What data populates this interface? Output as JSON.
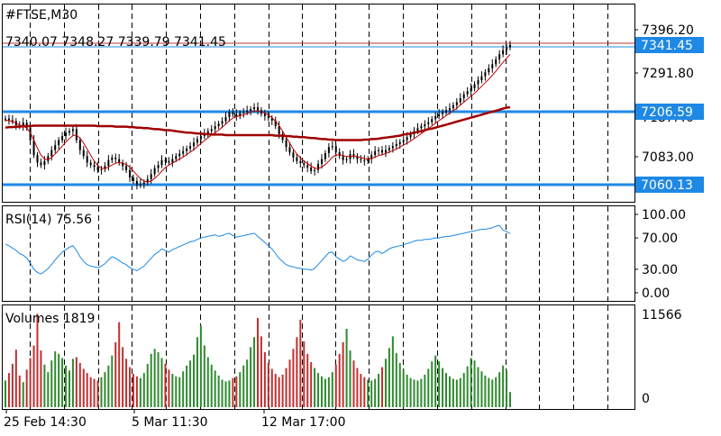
{
  "colors": {
    "background": "#ffffff",
    "grid": "#000000",
    "candle": "#000000",
    "ma_fast": "#c00000",
    "ma_slow": "#a00000",
    "level_line": "#1e88e5",
    "level_label_bg": "#1e88e5",
    "level_label_text": "#ffffff",
    "bid_line": "#c0303a",
    "ask_line": "#1e88e5",
    "rsi_line": "#1e88e5",
    "vol_up": "#2e8b2e",
    "vol_down": "#c03030"
  },
  "header": {
    "symbol": "#FTSE,M30",
    "ohlc": "7340.07 7348.27 7339.79 7341.45"
  },
  "rsi_label": "RSI(14) 75.56",
  "volume_label": "Volumes 1819",
  "chart_data": [
    {
      "type": "candlestick",
      "title": "#FTSE,M30",
      "ylim": [
        7030,
        7420
      ],
      "y_ticks": [
        "7396.20",
        "7291.80",
        "7187.40",
        "7083.00"
      ],
      "horizontal_levels": [
        {
          "value": 7206.59,
          "label": "7206.59"
        },
        {
          "value": 7060.13,
          "label": "7060.13"
        }
      ],
      "current_price": {
        "value": 7341.45,
        "label": "7341.45"
      },
      "close": [
        7193,
        7190,
        7188,
        7180,
        7178,
        7185,
        7175,
        7150,
        7120,
        7105,
        7100,
        7108,
        7118,
        7130,
        7140,
        7150,
        7158,
        7165,
        7168,
        7172,
        7150,
        7130,
        7118,
        7105,
        7100,
        7096,
        7090,
        7092,
        7098,
        7110,
        7115,
        7112,
        7105,
        7098,
        7090,
        7075,
        7068,
        7060,
        7062,
        7065,
        7072,
        7082,
        7094,
        7100,
        7110,
        7108,
        7105,
        7112,
        7118,
        7123,
        7128,
        7133,
        7138,
        7145,
        7152,
        7158,
        7163,
        7168,
        7172,
        7178,
        7183,
        7188,
        7196,
        7206,
        7202,
        7198,
        7204,
        7206,
        7209,
        7212,
        7216,
        7210,
        7203,
        7198,
        7194,
        7189,
        7178,
        7162,
        7150,
        7136,
        7125,
        7115,
        7108,
        7104,
        7100,
        7095,
        7088,
        7090,
        7102,
        7112,
        7124,
        7136,
        7138,
        7126,
        7118,
        7110,
        7112,
        7122,
        7118,
        7112,
        7110,
        7108,
        7112,
        7120,
        7128,
        7130,
        7125,
        7130,
        7134,
        7138,
        7142,
        7146,
        7150,
        7156,
        7162,
        7168,
        7174,
        7178,
        7182,
        7186,
        7192,
        7198,
        7202,
        7206,
        7210,
        7214,
        7220,
        7226,
        7234,
        7242,
        7248,
        7254,
        7262,
        7270,
        7278,
        7286,
        7294,
        7302,
        7312,
        7322,
        7330,
        7336,
        7341
      ],
      "ma_fast": [
        7190,
        7189,
        7187,
        7184,
        7180,
        7178,
        7174,
        7165,
        7150,
        7134,
        7120,
        7112,
        7111,
        7115,
        7122,
        7130,
        7138,
        7146,
        7153,
        7159,
        7160,
        7154,
        7144,
        7132,
        7120,
        7108,
        7099,
        7094,
        7093,
        7096,
        7100,
        7104,
        7105,
        7104,
        7101,
        7096,
        7088,
        7080,
        7073,
        7068,
        7066,
        7068,
        7073,
        7080,
        7088,
        7095,
        7100,
        7104,
        7108,
        7112,
        7116,
        7121,
        7126,
        7131,
        7137,
        7143,
        7149,
        7155,
        7160,
        7165,
        7170,
        7176,
        7182,
        7189,
        7194,
        7197,
        7199,
        7201,
        7203,
        7206,
        7208,
        7209,
        7207,
        7204,
        7200,
        7195,
        7188,
        7179,
        7168,
        7156,
        7144,
        7132,
        7122,
        7114,
        7108,
        7103,
        7098,
        7094,
        7093,
        7096,
        7101,
        7108,
        7116,
        7120,
        7121,
        7119,
        7117,
        7117,
        7118,
        7117,
        7115,
        7113,
        7112,
        7113,
        7116,
        7119,
        7121,
        7123,
        7126,
        7129,
        7132,
        7136,
        7140,
        7144,
        7148,
        7153,
        7158,
        7163,
        7168,
        7173,
        7178,
        7184,
        7189,
        7194,
        7199,
        7204,
        7209,
        7214,
        7220,
        7226,
        7232,
        7238,
        7244,
        7251,
        7258,
        7265,
        7272,
        7280,
        7288,
        7297,
        7306,
        7314,
        7322
      ],
      "ma_slow": [
        7175,
        7176,
        7176,
        7177,
        7177,
        7178,
        7178,
        7178,
        7179,
        7179,
        7179,
        7179,
        7179,
        7179,
        7179,
        7179,
        7179,
        7179,
        7179,
        7179,
        7179,
        7179,
        7179,
        7179,
        7179,
        7179,
        7178,
        7178,
        7178,
        7178,
        7178,
        7177,
        7177,
        7177,
        7177,
        7176,
        7176,
        7175,
        7175,
        7174,
        7174,
        7173,
        7172,
        7172,
        7171,
        7170,
        7170,
        7169,
        7168,
        7167,
        7166,
        7165,
        7165,
        7164,
        7163,
        7163,
        7162,
        7162,
        7161,
        7161,
        7161,
        7161,
        7160,
        7160,
        7160,
        7160,
        7160,
        7160,
        7160,
        7160,
        7160,
        7160,
        7160,
        7160,
        7160,
        7160,
        7159,
        7159,
        7159,
        7158,
        7158,
        7157,
        7157,
        7156,
        7156,
        7155,
        7154,
        7154,
        7153,
        7152,
        7152,
        7151,
        7151,
        7150,
        7150,
        7150,
        7150,
        7150,
        7150,
        7150,
        7150,
        7151,
        7151,
        7152,
        7152,
        7153,
        7154,
        7155,
        7156,
        7157,
        7158,
        7159,
        7161,
        7162,
        7163,
        7165,
        7166,
        7168,
        7170,
        7172,
        7173,
        7175,
        7177,
        7179,
        7181,
        7183,
        7185,
        7187,
        7189,
        7191,
        7193,
        7195,
        7197,
        7199,
        7201,
        7203,
        7205,
        7207,
        7209,
        7211,
        7213,
        7215,
        7216
      ]
    },
    {
      "type": "line",
      "title": "RSI(14) 75.56",
      "ylim": [
        0,
        100
      ],
      "y_ticks": [
        "100.00",
        "70.00",
        "30.00",
        "0.00"
      ],
      "values": [
        62,
        60,
        57,
        54,
        50,
        48,
        44,
        38,
        30,
        26,
        24,
        27,
        31,
        36,
        42,
        47,
        52,
        55,
        58,
        60,
        54,
        46,
        40,
        36,
        34,
        33,
        32,
        34,
        37,
        42,
        46,
        44,
        41,
        38,
        36,
        32,
        30,
        28,
        31,
        34,
        39,
        44,
        49,
        52,
        56,
        54,
        52,
        55,
        57,
        59,
        61,
        63,
        65,
        66,
        68,
        70,
        71,
        72,
        73,
        74,
        72,
        73,
        75,
        76,
        73,
        71,
        72,
        73,
        74,
        75,
        76,
        72,
        68,
        64,
        60,
        56,
        50,
        44,
        40,
        36,
        34,
        33,
        32,
        31,
        30,
        30,
        29,
        31,
        36,
        41,
        46,
        51,
        52,
        46,
        43,
        40,
        42,
        47,
        45,
        42,
        41,
        40,
        43,
        48,
        52,
        53,
        50,
        53,
        56,
        58,
        59,
        60,
        61,
        63,
        64,
        66,
        67,
        67,
        68,
        68,
        69,
        70,
        70,
        71,
        72,
        72,
        73,
        74,
        75,
        76,
        77,
        78,
        79,
        80,
        81,
        81,
        82,
        83,
        85,
        86,
        80,
        78,
        75.56
      ]
    },
    {
      "type": "bar",
      "title": "Volumes 1819",
      "ylim": [
        0,
        11566
      ],
      "y_ticks": [
        "11566",
        "0"
      ],
      "x_tick_labels": [
        "25 Feb 14:30",
        "5 Mar 11:30",
        "12 Mar 17:00"
      ],
      "values": [
        3200,
        4100,
        5200,
        6900,
        3800,
        3000,
        4500,
        5900,
        7400,
        11200,
        6800,
        5100,
        4200,
        5600,
        6700,
        6400,
        5900,
        5000,
        4400,
        5800,
        6000,
        5300,
        4600,
        4100,
        3600,
        3400,
        3200,
        3600,
        4200,
        5000,
        6200,
        7800,
        10200,
        7200,
        5800,
        4800,
        4000,
        3700,
        3500,
        4100,
        5200,
        6400,
        7000,
        6600,
        5900,
        5200,
        4500,
        4000,
        3700,
        3600,
        4300,
        5000,
        5600,
        6300,
        8400,
        9800,
        7400,
        6000,
        5100,
        4400,
        3800,
        3300,
        3100,
        3200,
        3500,
        3700,
        4200,
        5000,
        5700,
        7200,
        8400,
        10700,
        8500,
        6600,
        5300,
        4600,
        4000,
        3600,
        3900,
        4700,
        5700,
        7000,
        8400,
        10500,
        7900,
        6400,
        5400,
        4700,
        4100,
        3700,
        3400,
        3600,
        4200,
        5100,
        6400,
        7800,
        9400,
        6800,
        5600,
        4700,
        4000,
        3600,
        3300,
        3200,
        3400,
        4000,
        4800,
        5800,
        7100,
        8500,
        6500,
        5300,
        4500,
        3900,
        3500,
        3300,
        3200,
        3400,
        3900,
        4600,
        5500,
        6200,
        5500,
        4700,
        4100,
        3700,
        3400,
        3300,
        3500,
        4100,
        4900,
        5900,
        5600,
        4800,
        4300,
        3800,
        3500,
        3300,
        3600,
        4200,
        5000,
        4400,
        1819
      ]
    }
  ]
}
